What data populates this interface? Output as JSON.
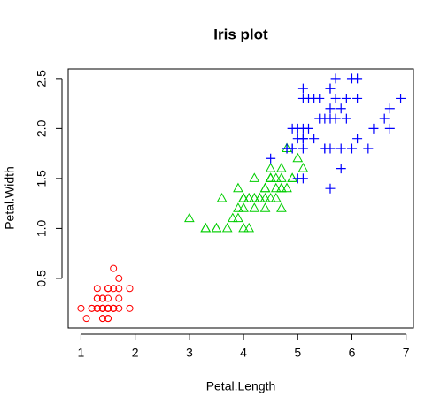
{
  "chart_data": {
    "type": "scatter",
    "title": "Iris plot",
    "x_label": "Petal.Length",
    "y_label": "Petal.Width",
    "xlim": [
      0.764,
      7.136
    ],
    "ylim": [
      0.004,
      2.596
    ],
    "xticks": [
      1,
      2,
      3,
      4,
      5,
      6,
      7
    ],
    "yticks": [
      0.5,
      {
        "value": 1,
        "label": "1.0"
      },
      1.5,
      {
        "value": 2,
        "label": "2.0"
      },
      2.5
    ],
    "series": [
      {
        "color": "#ff0000",
        "marker": "circle",
        "x": [
          1.4,
          1.4,
          1.3,
          1.5,
          1.4,
          1.7,
          1.4,
          1.5,
          1.4,
          1.5,
          1.5,
          1.6,
          1.4,
          1.1,
          1.2,
          1.5,
          1.3,
          1.4,
          1.7,
          1.5,
          1.7,
          1.5,
          1.0,
          1.7,
          1.9,
          1.6,
          1.6,
          1.5,
          1.4,
          1.6,
          1.6,
          1.5,
          1.5,
          1.4,
          1.5,
          1.2,
          1.3,
          1.4,
          1.3,
          1.5,
          1.3,
          1.3,
          1.3,
          1.6,
          1.9,
          1.4,
          1.6,
          1.4,
          1.5,
          1.4
        ],
        "values": [
          0.2,
          0.2,
          0.2,
          0.2,
          0.2,
          0.4,
          0.3,
          0.2,
          0.2,
          0.1,
          0.2,
          0.2,
          0.1,
          0.1,
          0.2,
          0.4,
          0.4,
          0.3,
          0.3,
          0.3,
          0.2,
          0.4,
          0.2,
          0.5,
          0.2,
          0.2,
          0.4,
          0.2,
          0.2,
          0.2,
          0.2,
          0.4,
          0.1,
          0.2,
          0.2,
          0.2,
          0.2,
          0.1,
          0.2,
          0.2,
          0.3,
          0.3,
          0.2,
          0.6,
          0.4,
          0.3,
          0.2,
          0.2,
          0.2,
          0.2
        ]
      },
      {
        "color": "#00cd00",
        "marker": "triangle",
        "x": [
          4.7,
          4.5,
          4.9,
          4.0,
          4.6,
          4.5,
          4.7,
          3.3,
          4.6,
          3.9,
          3.5,
          4.2,
          4.0,
          4.7,
          3.6,
          4.4,
          4.5,
          4.1,
          4.5,
          3.9,
          4.8,
          4.0,
          4.9,
          4.7,
          4.3,
          4.4,
          4.8,
          5.0,
          4.5,
          3.5,
          3.8,
          3.7,
          3.9,
          5.1,
          4.5,
          4.5,
          4.7,
          4.4,
          4.1,
          4.0,
          4.4,
          4.6,
          4.0,
          3.3,
          4.2,
          4.2,
          4.2,
          4.3,
          3.0,
          4.1
        ],
        "values": [
          1.4,
          1.5,
          1.5,
          1.3,
          1.5,
          1.3,
          1.6,
          1.0,
          1.3,
          1.4,
          1.0,
          1.5,
          1.0,
          1.4,
          1.3,
          1.4,
          1.5,
          1.0,
          1.5,
          1.1,
          1.8,
          1.3,
          1.5,
          1.2,
          1.3,
          1.4,
          1.4,
          1.7,
          1.5,
          1.0,
          1.1,
          1.0,
          1.2,
          1.6,
          1.5,
          1.6,
          1.5,
          1.3,
          1.3,
          1.3,
          1.2,
          1.4,
          1.2,
          1.0,
          1.3,
          1.2,
          1.3,
          1.3,
          1.1,
          1.3
        ]
      },
      {
        "color": "#0000ff",
        "marker": "plus",
        "x": [
          6.0,
          5.1,
          5.9,
          5.6,
          5.8,
          6.6,
          4.5,
          6.3,
          5.8,
          6.1,
          5.1,
          5.3,
          5.5,
          5.0,
          5.1,
          5.3,
          5.5,
          6.7,
          6.9,
          5.0,
          5.7,
          4.9,
          6.7,
          4.9,
          5.7,
          6.0,
          4.8,
          4.9,
          5.6,
          5.8,
          6.1,
          6.4,
          5.6,
          5.1,
          5.6,
          6.1,
          5.6,
          5.5,
          4.8,
          5.4,
          5.6,
          5.1,
          5.1,
          5.9,
          5.7,
          5.2,
          5.0,
          5.2,
          5.4,
          5.1
        ],
        "values": [
          2.5,
          1.9,
          2.1,
          1.8,
          2.2,
          2.1,
          1.7,
          1.8,
          1.8,
          2.5,
          2.0,
          1.9,
          2.1,
          2.0,
          2.4,
          2.3,
          1.8,
          2.2,
          2.3,
          1.5,
          2.3,
          2.0,
          2.0,
          1.8,
          2.1,
          1.8,
          1.8,
          1.8,
          2.1,
          1.6,
          1.9,
          2.0,
          2.2,
          1.5,
          1.4,
          2.3,
          2.4,
          1.8,
          1.8,
          2.1,
          2.4,
          2.3,
          1.9,
          2.3,
          2.5,
          2.3,
          1.9,
          2.0,
          2.3,
          1.8
        ]
      }
    ]
  }
}
